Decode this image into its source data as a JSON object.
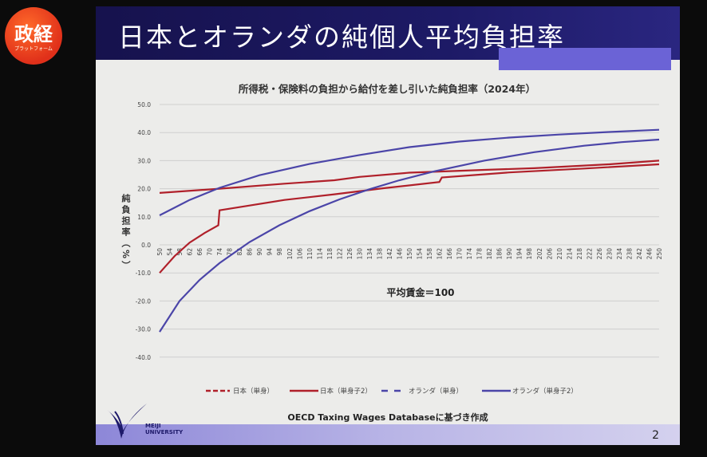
{
  "logo": {
    "main": "政経",
    "sub": "プラットフォーム"
  },
  "slide": {
    "title": "日本とオランダの純個人平均負担率",
    "page_number": "2",
    "source": "OECD Taxing Wages Databaseに基づき作成",
    "university": "MEIJI UNIVERSITY",
    "university_line1": "MEIJI",
    "university_line2": "UNIVERSITY"
  },
  "chart_data": {
    "type": "line",
    "title": "所得税・保険料の負担から給付を差し引いた純負担率（2024年）",
    "ylabel": "純負担率（%）",
    "xlabel": "",
    "annotation": "平均賃金＝100",
    "ylim": [
      -40,
      50
    ],
    "yticks": [
      "50.0",
      "40.0",
      "30.0",
      "20.0",
      "10.0",
      "0.0",
      "-10.0",
      "-20.0",
      "-30.0",
      "-40.0"
    ],
    "xlim": [
      50,
      250
    ],
    "xtick_step": 4,
    "grid": "horizontal",
    "legend_position": "bottom",
    "series": [
      {
        "name": "日本（単身）",
        "color": "#b0202a",
        "dash": true,
        "points": [
          [
            50,
            18.5
          ],
          [
            74,
            20
          ],
          [
            100,
            21.8
          ],
          [
            120,
            23
          ],
          [
            130,
            24.2
          ],
          [
            150,
            25.7
          ],
          [
            180,
            26.7
          ],
          [
            200,
            27.3
          ],
          [
            230,
            28.7
          ],
          [
            250,
            30
          ]
        ]
      },
      {
        "name": "日本（単身子2）",
        "color": "#b0202a",
        "dash": false,
        "points": [
          [
            50,
            -10
          ],
          [
            56,
            -4
          ],
          [
            62,
            0.8
          ],
          [
            68,
            4.2
          ],
          [
            73.5,
            7
          ],
          [
            74,
            12.3
          ],
          [
            86,
            14
          ],
          [
            100,
            16
          ],
          [
            120,
            18
          ],
          [
            140,
            20.2
          ],
          [
            162,
            22.4
          ],
          [
            163,
            24
          ],
          [
            190,
            25.8
          ],
          [
            220,
            27.2
          ],
          [
            250,
            28.7
          ]
        ]
      },
      {
        "name": "オランダ（単身）",
        "color": "#4b45a8",
        "dash": true,
        "points": [
          [
            50,
            10.5
          ],
          [
            62,
            16
          ],
          [
            74,
            20.3
          ],
          [
            90,
            24.8
          ],
          [
            110,
            28.8
          ],
          [
            130,
            32
          ],
          [
            150,
            34.8
          ],
          [
            170,
            36.8
          ],
          [
            190,
            38.2
          ],
          [
            210,
            39.3
          ],
          [
            230,
            40.2
          ],
          [
            250,
            41
          ]
        ]
      },
      {
        "name": "オランダ（単身子2）",
        "color": "#4b45a8",
        "dash": false,
        "points": [
          [
            50,
            -31
          ],
          [
            58,
            -20
          ],
          [
            66,
            -12.5
          ],
          [
            74,
            -6.5
          ],
          [
            86,
            1
          ],
          [
            98,
            7
          ],
          [
            110,
            12
          ],
          [
            122,
            16.2
          ],
          [
            134,
            19.8
          ],
          [
            146,
            23
          ],
          [
            160,
            26.2
          ],
          [
            180,
            30
          ],
          [
            200,
            33
          ],
          [
            220,
            35.3
          ],
          [
            235,
            36.6
          ],
          [
            250,
            37.5
          ]
        ]
      }
    ]
  }
}
